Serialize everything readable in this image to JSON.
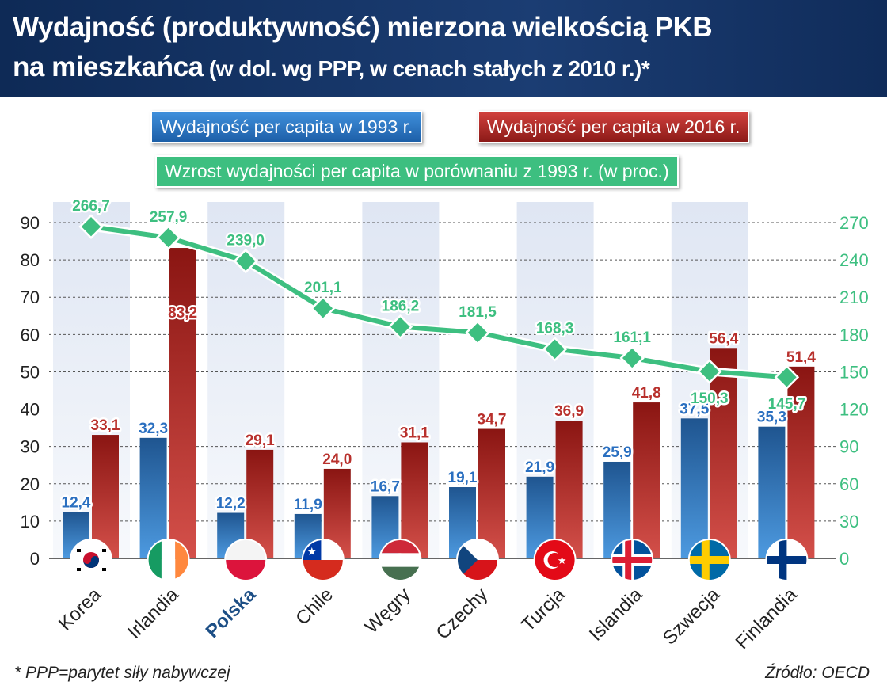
{
  "title": {
    "line1": "Wydajność (produktywność) mierzona wielkością PKB",
    "line2_main": "na mieszkańca",
    "line2_sub": " (w dol. wg PPP, w cenach stałych z 2010 r.)*"
  },
  "colors": {
    "blue": "#2a6fc0",
    "red": "#b8302c",
    "green": "#3dbf80",
    "header": "#14305f",
    "highlight_label": "#1d4f86"
  },
  "chart_data": {
    "type": "bar+line",
    "categories": [
      "Korea",
      "Irlandia",
      "Polska",
      "Chile",
      "Węgry",
      "Czechy",
      "Turcja",
      "Islandia",
      "Szwecja",
      "Finlandia"
    ],
    "highlight_category": "Polska",
    "flags": [
      "south-korea-flag",
      "ireland-flag",
      "poland-flag",
      "chile-flag",
      "hungary-flag",
      "czech-flag",
      "turkey-flag",
      "iceland-flag",
      "sweden-flag",
      "finland-flag"
    ],
    "series": [
      {
        "name": "Wydajność per capita w 1993 r.",
        "type": "bar",
        "axis": "left",
        "color": "#2a6fc0",
        "values": [
          12.4,
          32.3,
          12.2,
          11.9,
          16.7,
          19.1,
          21.9,
          25.9,
          37.5,
          35.3
        ]
      },
      {
        "name": "Wydajność per capita w 2016 r.",
        "type": "bar",
        "axis": "left",
        "color": "#b8302c",
        "values": [
          33.1,
          83.2,
          29.1,
          24.0,
          31.1,
          34.7,
          36.9,
          41.8,
          56.4,
          51.4
        ]
      },
      {
        "name": "Wzrost wydajności per capita w porównaniu z 1993 r. (w proc.)",
        "type": "line",
        "axis": "right",
        "color": "#3dbf80",
        "values": [
          266.7,
          257.9,
          239.0,
          201.1,
          186.2,
          181.5,
          168.3,
          161.1,
          150.3,
          145.7
        ]
      }
    ],
    "left_axis": {
      "ylim": [
        0,
        90
      ],
      "ticks": [
        0,
        10,
        20,
        30,
        40,
        50,
        60,
        70,
        80,
        90
      ]
    },
    "right_axis": {
      "ylim": [
        0,
        270
      ],
      "ticks": [
        0,
        30,
        60,
        90,
        120,
        150,
        180,
        210,
        240,
        270
      ]
    },
    "grid": true,
    "legend_placement": "top"
  },
  "footer": {
    "note": "* PPP=parytet siły nabywczej",
    "source": "Źródło: OECD"
  }
}
